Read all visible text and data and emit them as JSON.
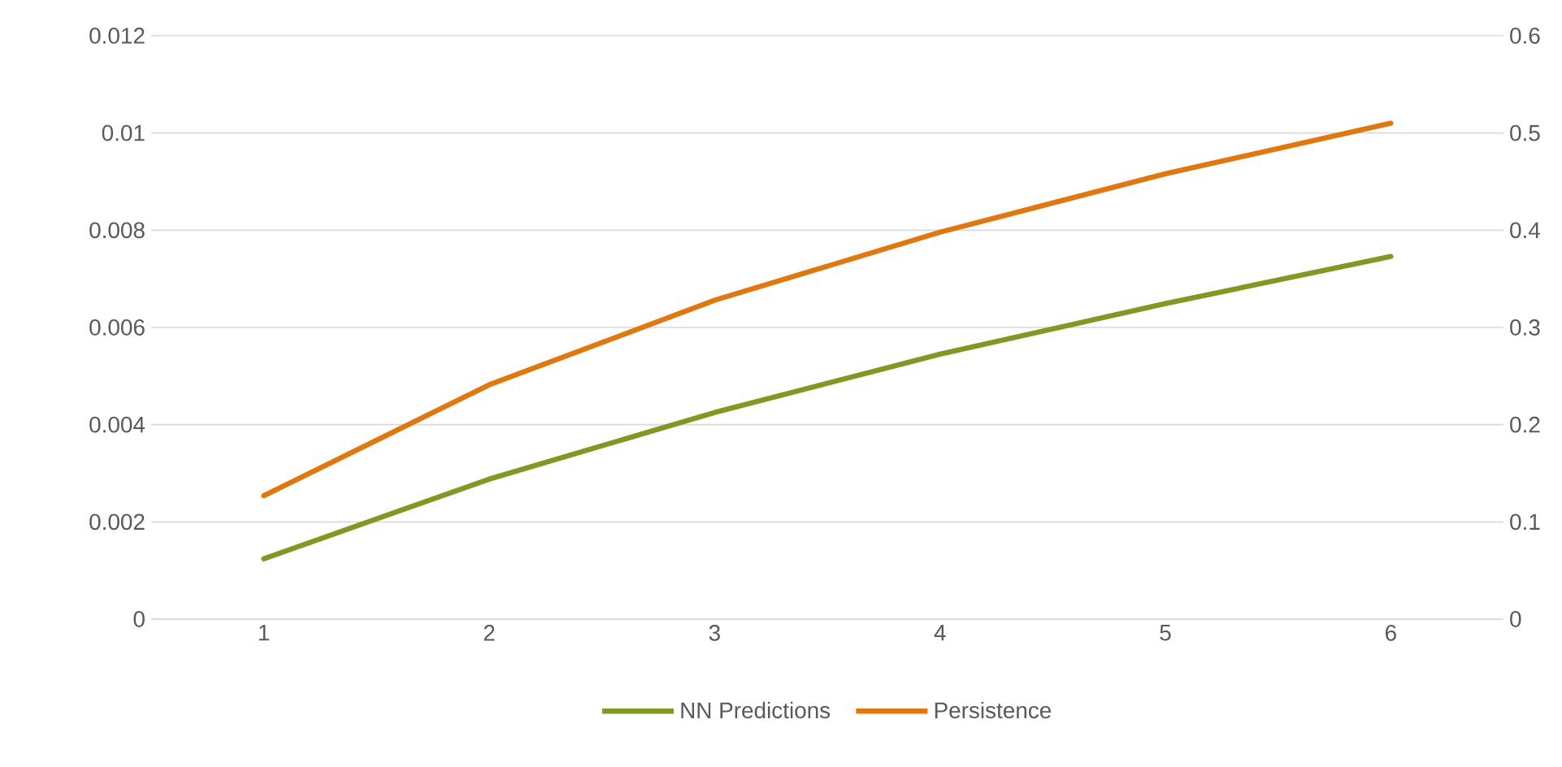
{
  "chart_data": {
    "type": "line",
    "categories": [
      "1",
      "2",
      "3",
      "4",
      "5",
      "6"
    ],
    "series": [
      {
        "name": "NN Predictions",
        "color": "#7f9a22",
        "values": [
          0.00124,
          0.00288,
          0.00425,
          0.00545,
          0.00649,
          0.00746
        ]
      },
      {
        "name": "Persistence",
        "color": "#e0780f",
        "axis": "y2",
        "values": [
          0.127,
          0.241,
          0.328,
          0.398,
          0.458,
          0.51
        ]
      }
    ],
    "ylim": [
      0,
      0.012
    ],
    "yticks": [
      0,
      0.002,
      0.004,
      0.006,
      0.008,
      0.01,
      0.012
    ],
    "y2lim": [
      0,
      0.6
    ],
    "y2ticks": [
      0,
      0.1,
      0.2,
      0.3,
      0.4,
      0.5,
      0.6
    ],
    "grid": "y",
    "legend": "bottom",
    "marker": "none",
    "line_style": "solid"
  }
}
